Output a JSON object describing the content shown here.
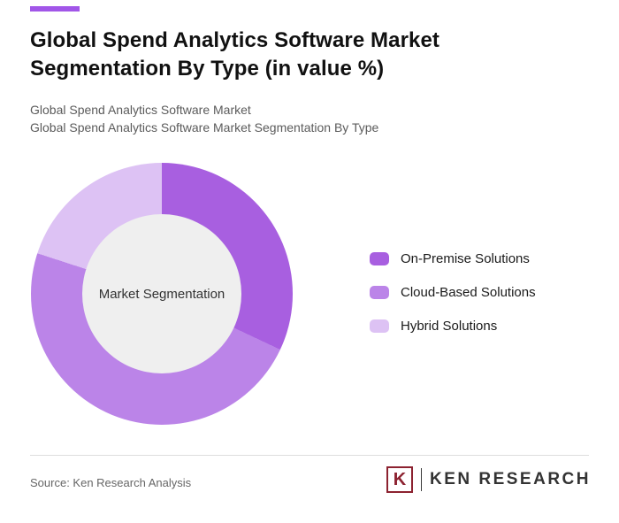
{
  "accent_color": "#a156e8",
  "header": {
    "title": "Global Spend Analytics Software Market Segmentation By Type (in value %)",
    "subtitle1": "Global Spend Analytics Software Market",
    "subtitle2": "Global Spend Analytics Software Market Segmentation By Type"
  },
  "chart_data": {
    "type": "pie",
    "style": "donut",
    "title": "Global Spend Analytics Software Market Segmentation By Type (in value %)",
    "center_label": "Market Segmentation",
    "start_angle_deg": 0,
    "legend_position": "right",
    "values_unit": "% (estimated from arc angles; no data labels shown)",
    "segments": [
      {
        "label": "On-Premise Solutions",
        "value": 32,
        "color": "#a85fe0"
      },
      {
        "label": "Cloud-Based Solutions",
        "value": 48,
        "color": "#bb84e8"
      },
      {
        "label": "Hybrid Solutions",
        "value": 20,
        "color": "#ddc2f4"
      }
    ],
    "hole_color": "#efefef"
  },
  "footer": {
    "source": "Source: Ken Research Analysis",
    "logo": {
      "k_letter": "K",
      "brand": "KEN RESEARCH"
    }
  }
}
